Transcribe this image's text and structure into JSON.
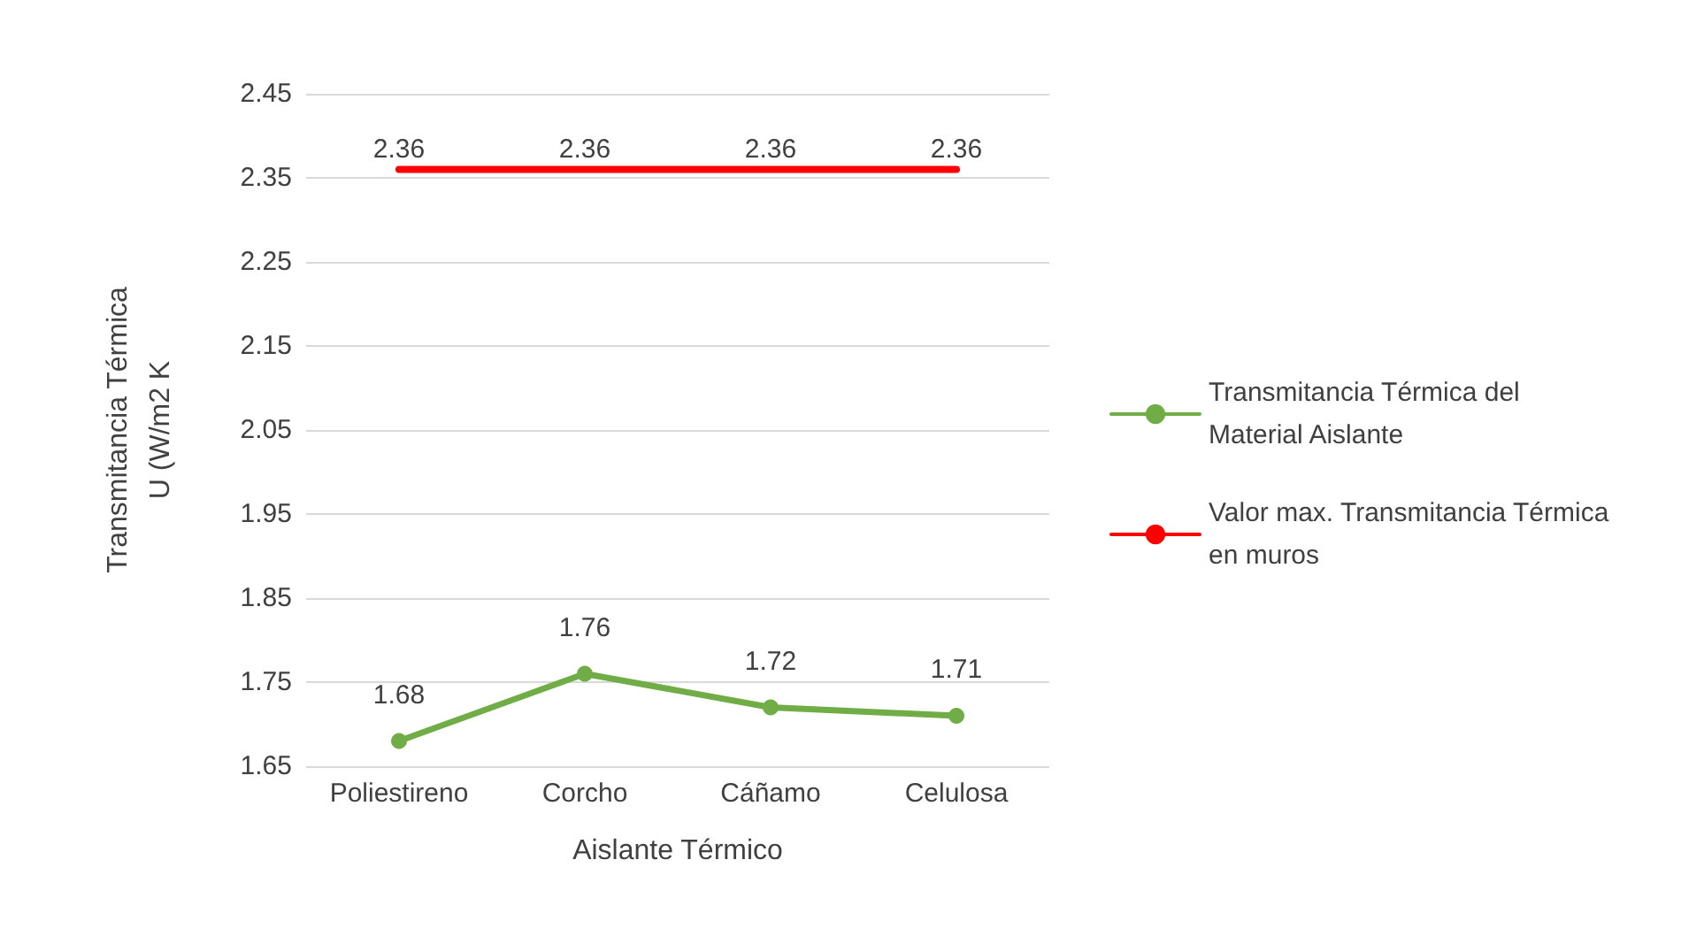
{
  "chart_data": {
    "type": "line",
    "xlabel": "Aislante Térmico",
    "ylabel": "Transmitancia Térmica\nU (W/m2 K",
    "categories": [
      "Poliestireno",
      "Corcho",
      "Cáñamo",
      "Celulosa"
    ],
    "series": [
      {
        "name": "Transmitancia Térmica del Material Aislante",
        "color": "#70ad47",
        "marker": "circle",
        "values": [
          1.68,
          1.76,
          1.72,
          1.71
        ]
      },
      {
        "name": "Valor max. Transmitancia Térmica en muros",
        "color": "#ff0000",
        "marker": "none",
        "values": [
          2.36,
          2.36,
          2.36,
          2.36
        ]
      }
    ],
    "ylim": [
      1.65,
      2.45
    ],
    "yticks": [
      1.65,
      1.75,
      1.85,
      1.95,
      2.05,
      2.15,
      2.25,
      2.35,
      2.45
    ],
    "grid": "y",
    "legend": "right",
    "data_labels": true
  }
}
